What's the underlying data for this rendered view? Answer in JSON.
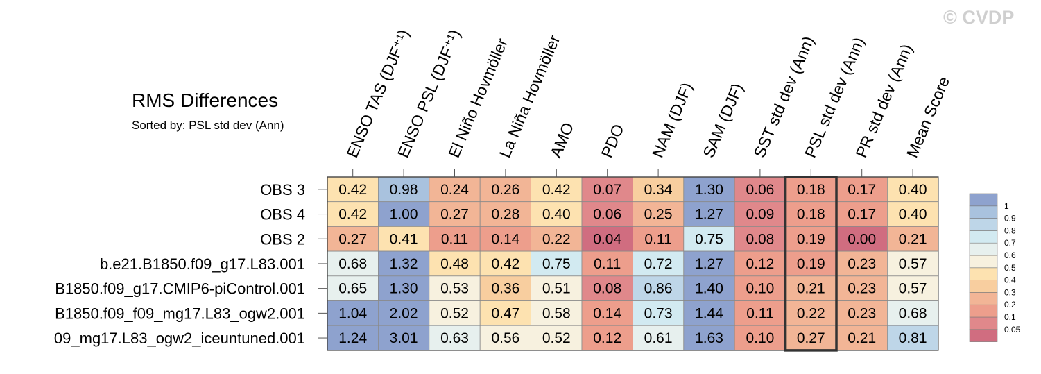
{
  "watermark": "© CVDP",
  "chart_data": {
    "type": "heatmap",
    "title": "RMS Differences",
    "subtitle": "Sorted by: PSL std dev (Ann)",
    "columns": [
      "ENSO TAS (DJF⁺¹)",
      "ENSO PSL (DJF⁺¹)",
      "El Niño Hovmöller",
      "La Niña Hovmöller",
      "AMO",
      "PDO",
      "NAM (DJF)",
      "SAM (DJF)",
      "SST std dev (Ann)",
      "PSL std dev (Ann)",
      "PR std dev (Ann)",
      "Mean Score"
    ],
    "rows": [
      "OBS 3",
      "OBS 4",
      "OBS 2",
      "b.e21.B1850.f09_g17.L83.001",
      "B1850.f09_g17.CMIP6-piControl.001",
      "B1850.f09_f09_mg17.L83_ogw2.001",
      "09_mg17.L83_ogw2_iceuntuned.001"
    ],
    "values": [
      [
        "0.42",
        "0.98",
        "0.24",
        "0.26",
        "0.42",
        "0.07",
        "0.34",
        "1.30",
        "0.06",
        "0.18",
        "0.17",
        "0.40"
      ],
      [
        "0.42",
        "1.00",
        "0.27",
        "0.28",
        "0.40",
        "0.06",
        "0.25",
        "1.27",
        "0.09",
        "0.18",
        "0.17",
        "0.40"
      ],
      [
        "0.27",
        "0.41",
        "0.11",
        "0.14",
        "0.22",
        "0.04",
        "0.11",
        "0.75",
        "0.08",
        "0.19",
        "0.00",
        "0.21"
      ],
      [
        "0.68",
        "1.32",
        "0.48",
        "0.42",
        "0.75",
        "0.11",
        "0.72",
        "1.27",
        "0.12",
        "0.19",
        "0.23",
        "0.57"
      ],
      [
        "0.65",
        "1.30",
        "0.53",
        "0.36",
        "0.51",
        "0.08",
        "0.86",
        "1.40",
        "0.10",
        "0.21",
        "0.23",
        "0.57"
      ],
      [
        "1.04",
        "2.02",
        "0.52",
        "0.47",
        "0.58",
        "0.14",
        "0.73",
        "1.44",
        "0.11",
        "0.22",
        "0.23",
        "0.68"
      ],
      [
        "1.24",
        "3.01",
        "0.63",
        "0.56",
        "0.52",
        "0.12",
        "0.61",
        "1.63",
        "0.10",
        "0.27",
        "0.21",
        "0.81"
      ]
    ],
    "highlighted_column": "PSL std dev (Ann)",
    "colorbar": {
      "levels": [
        0.05,
        0.1,
        0.2,
        0.3,
        0.4,
        0.5,
        0.6,
        0.7,
        0.8,
        0.9,
        1
      ],
      "labels": [
        "0.05",
        "0.1",
        "0.2",
        "0.3",
        "0.4",
        "0.5",
        "0.6",
        "0.7",
        "0.8",
        "0.9",
        "1"
      ],
      "colors": [
        "#d06d80",
        "#e0888b",
        "#ed9e8c",
        "#f2b596",
        "#f8ce9f",
        "#fde2b0",
        "#f7f1df",
        "#e7f0ee",
        "#d2eaf1",
        "#bed6e8",
        "#a9c2de",
        "#8ea2ce"
      ]
    }
  }
}
